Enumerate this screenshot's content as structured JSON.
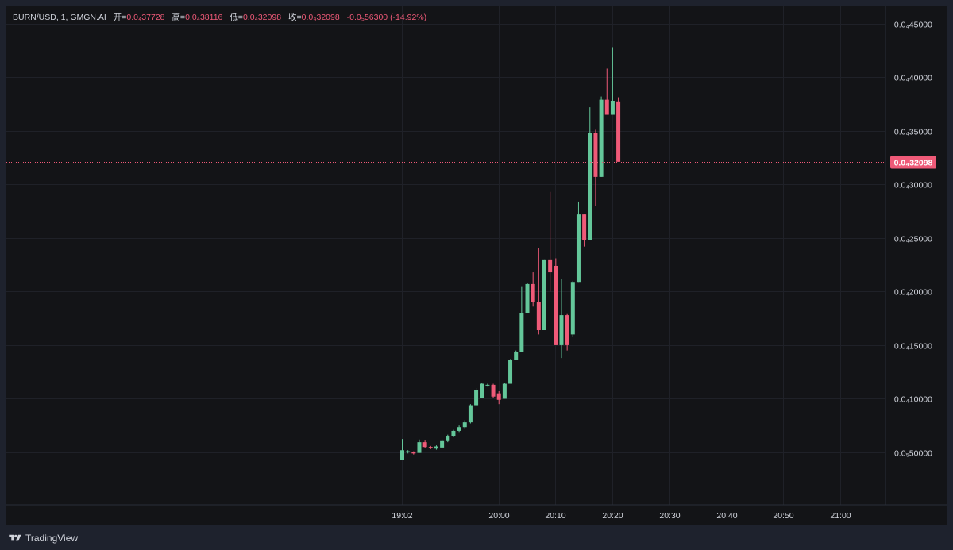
{
  "legend": {
    "symbol": "BURN/USD, 1, GMGN.AI",
    "open_label": "开=",
    "open": "0.0₄37728",
    "high_label": "高=",
    "high": "0.0₄38116",
    "low_label": "低=",
    "low": "0.0₄32098",
    "close_label": "收=",
    "close": "0.0₄32098",
    "change": "-0.0₅56300 (-14.92%)"
  },
  "price_tag": "0.0₄32098",
  "footer": {
    "brand": "TradingView",
    "logo_icon": "tradingview-logo-icon"
  },
  "colors": {
    "up": "#64c79a",
    "down": "#ef5a78",
    "background": "#131417",
    "grid": "#1f2128",
    "text": "#d1d4dc"
  },
  "chart_data": {
    "type": "candlestick",
    "x_axis": {
      "tick_labels": [
        "19:02",
        "20:00",
        "20:10",
        "20:20",
        "20:30",
        "20:40",
        "20:50",
        "21:00"
      ]
    },
    "y_axis": {
      "tick_labels": [
        "0.0₅50000",
        "0.0₄10000",
        "0.0₄15000",
        "0.0₄20000",
        "0.0₄25000",
        "0.0₄30000",
        "0.0₄35000",
        "0.0₄40000",
        "0.0₄45000"
      ],
      "tick_values": [
        5e-06,
        1e-05,
        1.5e-05,
        2e-05,
        2.5e-05,
        3e-05,
        3.5e-05,
        4e-05,
        4.5e-05
      ],
      "range": [
        1e-07,
        4.66e-05
      ]
    },
    "last_price": 3.2098e-05,
    "candles": [
      {
        "o": 4.29e-06,
        "h": 6.24e-06,
        "l": 4.29e-06,
        "c": 5.19e-06
      },
      {
        "o": 4.99e-06,
        "h": 5.19e-06,
        "l": 4.89e-06,
        "c": 5.09e-06
      },
      {
        "o": 4.99e-06,
        "h": 5.09e-06,
        "l": 4.79e-06,
        "c": 4.89e-06
      },
      {
        "o": 4.94e-06,
        "h": 6.19e-06,
        "l": 4.94e-06,
        "c": 5.94e-06
      },
      {
        "o": 5.94e-06,
        "h": 6.09e-06,
        "l": 5.39e-06,
        "c": 5.49e-06
      },
      {
        "o": 5.49e-06,
        "h": 5.59e-06,
        "l": 5.29e-06,
        "c": 5.39e-06
      },
      {
        "o": 5.34e-06,
        "h": 5.64e-06,
        "l": 5.24e-06,
        "c": 5.54e-06
      },
      {
        "o": 5.44e-06,
        "h": 6.19e-06,
        "l": 5.44e-06,
        "c": 6.04e-06
      },
      {
        "o": 6.04e-06,
        "h": 6.64e-06,
        "l": 5.94e-06,
        "c": 6.54e-06
      },
      {
        "o": 6.54e-06,
        "h": 7.09e-06,
        "l": 6.44e-06,
        "c": 6.99e-06
      },
      {
        "o": 6.99e-06,
        "h": 7.49e-06,
        "l": 6.89e-06,
        "c": 7.34e-06
      },
      {
        "o": 7.34e-06,
        "h": 7.99e-06,
        "l": 7.24e-06,
        "c": 7.79e-06
      },
      {
        "o": 7.79e-06,
        "h": 9.49e-06,
        "l": 7.69e-06,
        "c": 9.39e-06
      },
      {
        "o": 9.39e-06,
        "h": 1.099e-05,
        "l": 9.29e-06,
        "c": 1.079e-05
      },
      {
        "o": 1.009e-05,
        "h": 1.149e-05,
        "l": 1.009e-05,
        "c": 1.139e-05
      },
      {
        "o": 1.129e-05,
        "h": 1.139e-05,
        "l": 1.119e-05,
        "c": 1.129e-05
      },
      {
        "o": 1.129e-05,
        "h": 1.139e-05,
        "l": 1.009e-05,
        "c": 1.019e-05
      },
      {
        "o": 1.049e-05,
        "h": 1.069e-05,
        "l": 9.49e-06,
        "c": 9.89e-06
      },
      {
        "o": 9.99e-06,
        "h": 1.149e-05,
        "l": 9.99e-06,
        "c": 1.139e-05
      },
      {
        "o": 1.139e-05,
        "h": 1.369e-05,
        "l": 1.139e-05,
        "c": 1.359e-05
      },
      {
        "o": 1.359e-05,
        "h": 1.449e-05,
        "l": 1.359e-05,
        "c": 1.439e-05
      },
      {
        "o": 1.439e-05,
        "h": 2.049e-05,
        "l": 1.439e-05,
        "c": 1.799e-05
      },
      {
        "o": 1.799e-05,
        "h": 2.079e-05,
        "l": 1.799e-05,
        "c": 2.069e-05
      },
      {
        "o": 2.069e-05,
        "h": 2.179e-05,
        "l": 1.859e-05,
        "c": 1.899e-05
      },
      {
        "o": 1.899e-05,
        "h": 2.409e-05,
        "l": 1.599e-05,
        "c": 1.639e-05
      },
      {
        "o": 1.639e-05,
        "h": 2.299e-05,
        "l": 1.639e-05,
        "c": 2.299e-05
      },
      {
        "o": 2.299e-05,
        "h": 2.929e-05,
        "l": 1.999e-05,
        "c": 2.179e-05
      },
      {
        "o": 2.239e-05,
        "h": 2.309e-05,
        "l": 1.499e-05,
        "c": 1.499e-05
      },
      {
        "o": 1.499e-05,
        "h": 2.119e-05,
        "l": 1.379e-05,
        "c": 1.779e-05
      },
      {
        "o": 1.779e-05,
        "h": 1.789e-05,
        "l": 1.449e-05,
        "c": 1.499e-05
      },
      {
        "o": 1.599e-05,
        "h": 2.099e-05,
        "l": 1.579e-05,
        "c": 2.089e-05
      },
      {
        "o": 2.089e-05,
        "h": 2.839e-05,
        "l": 2.089e-05,
        "c": 2.719e-05
      },
      {
        "o": 2.719e-05,
        "h": 2.719e-05,
        "l": 2.419e-05,
        "c": 2.479e-05
      },
      {
        "o": 2.479e-05,
        "h": 3.719e-05,
        "l": 2.479e-05,
        "c": 3.479e-05
      },
      {
        "o": 3.479e-05,
        "h": 3.509e-05,
        "l": 2.799e-05,
        "c": 3.069e-05
      },
      {
        "o": 3.069e-05,
        "h": 3.819e-05,
        "l": 3.069e-05,
        "c": 3.789e-05
      },
      {
        "o": 3.789e-05,
        "h": 4.079e-05,
        "l": 3.649e-05,
        "c": 3.649e-05
      },
      {
        "o": 3.649e-05,
        "h": 4.279e-05,
        "l": 3.649e-05,
        "c": 3.779e-05
      },
      {
        "o": 3.773e-05,
        "h": 3.812e-05,
        "l": 3.21e-05,
        "c": 3.21e-05
      }
    ]
  }
}
